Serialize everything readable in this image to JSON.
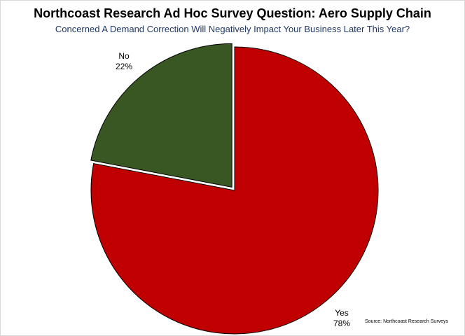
{
  "chart_data": {
    "type": "pie",
    "title": "Northcoast Research Ad Hoc Survey Question: Aero Supply Chain",
    "subtitle": "Concerned A Demand Correction Will Negatively Impact Your Business Later This Year?",
    "categories": [
      "Yes",
      "No"
    ],
    "values": [
      78,
      22
    ],
    "value_labels": [
      "78%",
      "22%"
    ],
    "colors": [
      "#c00000",
      "#385723"
    ],
    "exploded": "No",
    "source": "Source: Northcoast Research Surveys"
  }
}
